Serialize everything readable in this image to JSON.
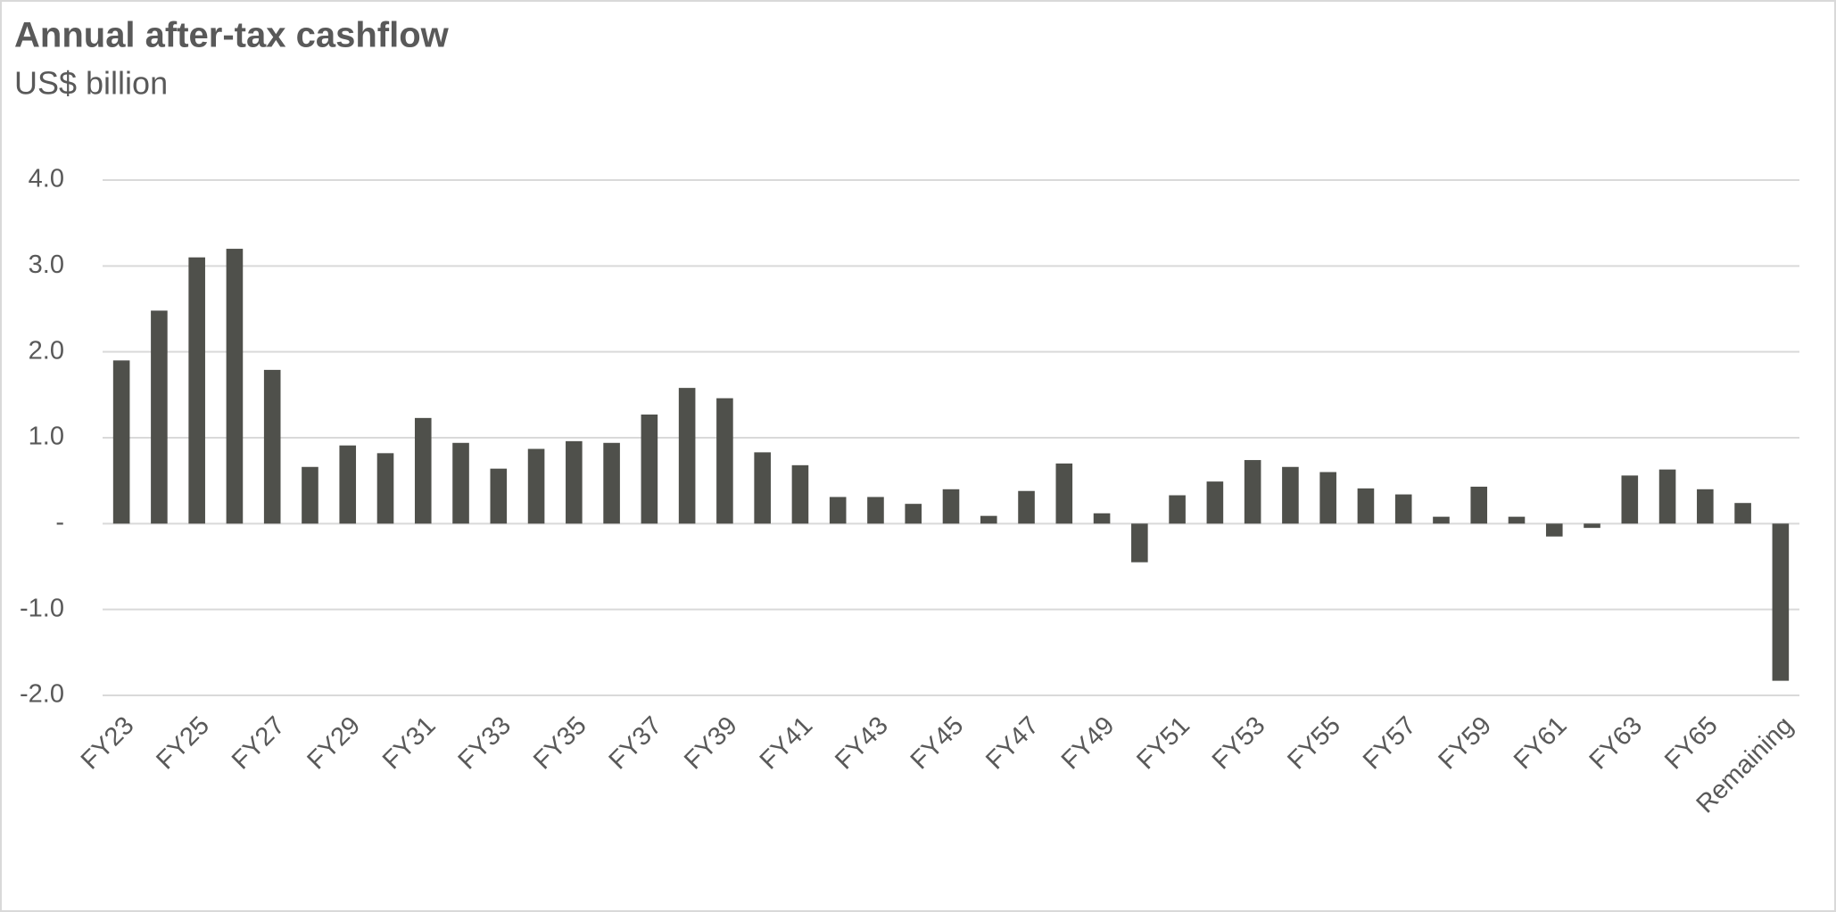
{
  "chart_data": {
    "type": "bar",
    "title": "Annual after-tax cashflow",
    "subtitle": "US$ billion",
    "categories": [
      "FY23",
      null,
      "FY25",
      null,
      "FY27",
      null,
      "FY29",
      null,
      "FY31",
      null,
      "FY33",
      null,
      "FY35",
      null,
      "FY37",
      null,
      "FY39",
      null,
      "FY41",
      null,
      "FY43",
      null,
      "FY45",
      null,
      "FY47",
      null,
      "FY49",
      null,
      "FY51",
      null,
      "FY53",
      null,
      "FY55",
      null,
      "FY57",
      null,
      "FY59",
      null,
      "FY61",
      null,
      "FY63",
      null,
      "FY65",
      null,
      "Remaining"
    ],
    "values": [
      1.9,
      2.48,
      3.1,
      3.2,
      1.79,
      0.66,
      0.91,
      0.82,
      1.23,
      0.94,
      0.64,
      0.87,
      0.96,
      0.94,
      1.27,
      1.58,
      1.46,
      0.83,
      0.68,
      0.31,
      0.31,
      0.23,
      0.4,
      0.09,
      0.38,
      0.7,
      0.12,
      -0.45,
      0.33,
      0.49,
      0.74,
      0.66,
      0.6,
      0.41,
      0.34,
      0.08,
      0.43,
      0.08,
      -0.15,
      -0.05,
      0.56,
      0.63,
      0.4,
      0.24,
      -1.83
    ],
    "color": "#4f504b",
    "ylim": [
      -2,
      4
    ],
    "yticks": [
      {
        "value": -2,
        "label": "-2.0"
      },
      {
        "value": -1,
        "label": "-1.0"
      },
      {
        "value": 0,
        "label": "-"
      },
      {
        "value": 1,
        "label": "1.0"
      },
      {
        "value": 2,
        "label": "2.0"
      },
      {
        "value": 3,
        "label": "3.0"
      },
      {
        "value": 4,
        "label": "4.0"
      }
    ],
    "grid": true
  }
}
